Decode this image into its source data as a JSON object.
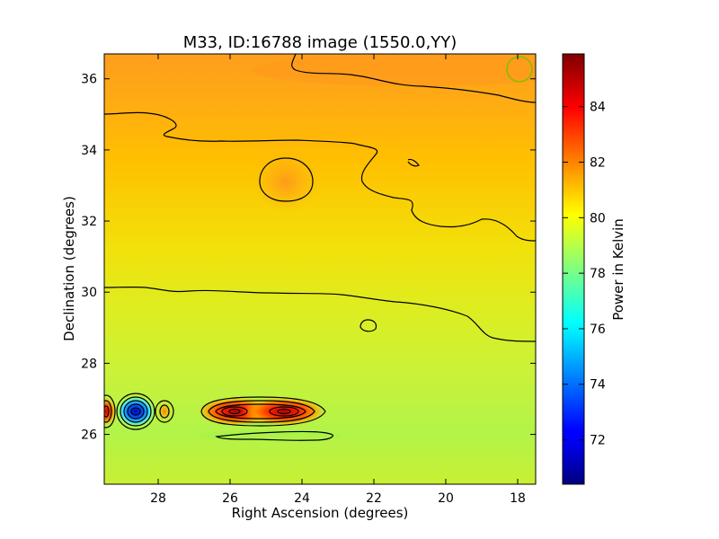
{
  "chart_data": {
    "type": "heatmap",
    "title": "M33, ID:16788 image (1550.0,YY)",
    "xlabel": "Right Ascension (degrees)",
    "ylabel": "Declination (degrees)",
    "xlim": [
      29.5,
      17.5
    ],
    "ylim": [
      24.6,
      36.7
    ],
    "x_axis_inverted": true,
    "x_ticks": [
      28,
      26,
      24,
      22,
      20,
      18
    ],
    "x_tick_labels": [
      "28",
      "26",
      "24",
      "22",
      "20",
      "18"
    ],
    "y_ticks": [
      26,
      28,
      30,
      32,
      34,
      36
    ],
    "y_tick_labels": [
      "26",
      "28",
      "30",
      "32",
      "34",
      "36"
    ],
    "colorbar": {
      "label": "Power in Kelvin",
      "range": [
        70.4,
        85.9
      ],
      "colormap": "jet",
      "ticks": [
        72,
        74,
        76,
        78,
        80,
        82,
        84
      ],
      "tick_labels": [
        "72",
        "74",
        "76",
        "78",
        "80",
        "82",
        "84"
      ]
    },
    "contours": true,
    "colors": {
      "contour": "#000000",
      "circle_marker": "#7fbf00"
    },
    "features": [
      {
        "name": "background_north",
        "ra": 23.5,
        "dec": 35.5,
        "value": 82.5
      },
      {
        "name": "background_south",
        "ra": 23.5,
        "dec": 25.5,
        "value": 79.0
      },
      {
        "name": "warm_spot",
        "ra": 24.4,
        "dec": 33.1,
        "value": 82.5
      },
      {
        "name": "hot_blob_left",
        "ra": 25.8,
        "dec": 26.7,
        "value": 85.0
      },
      {
        "name": "hot_blob_right",
        "ra": 24.5,
        "dec": 26.7,
        "value": 85.0
      },
      {
        "name": "cold_spot",
        "ra": 28.7,
        "dec": 26.7,
        "value": 71.0
      },
      {
        "name": "hot_edge",
        "ra": 29.5,
        "dec": 26.7,
        "value": 84.0
      },
      {
        "name": "small_spot_right",
        "ra": 27.8,
        "dec": 26.65,
        "value": 82.8
      }
    ],
    "marker_circle": {
      "ra": 17.8,
      "dec": 36.2
    }
  }
}
